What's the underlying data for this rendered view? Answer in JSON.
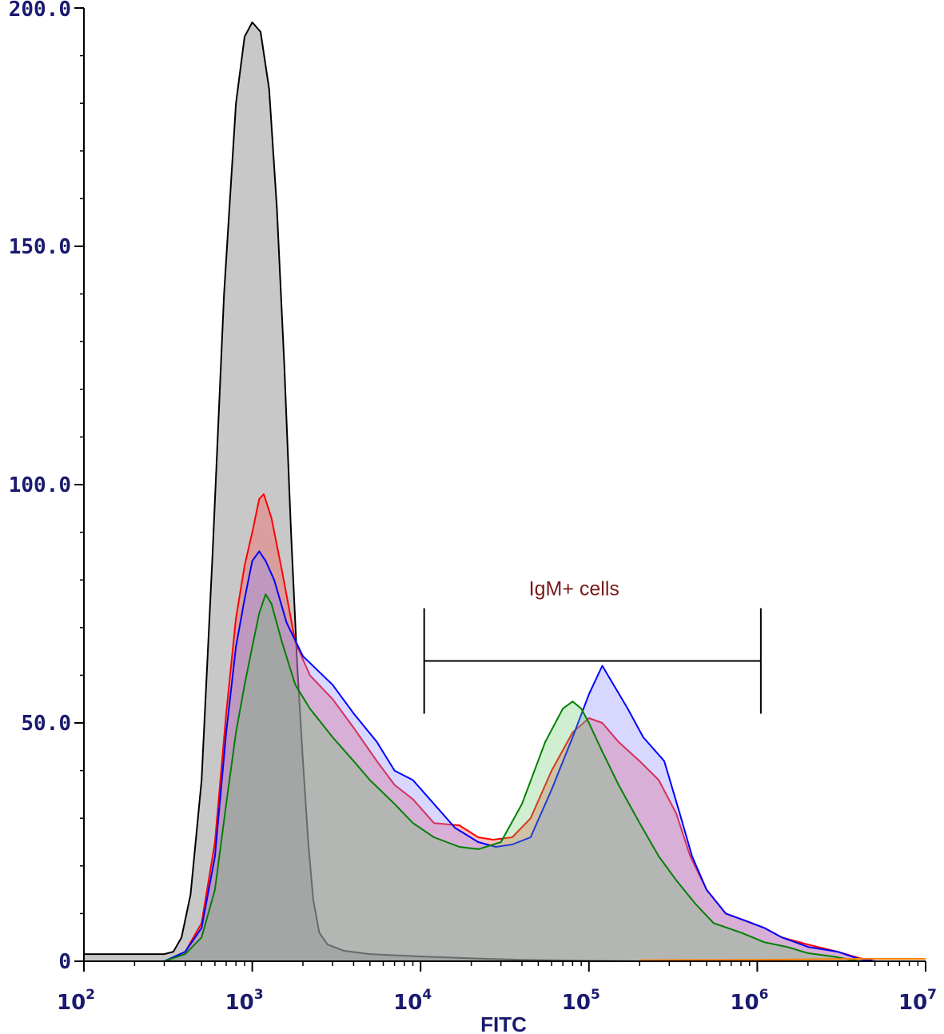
{
  "chart_data": {
    "type": "area",
    "title": "",
    "xlabel": "FITC",
    "ylabel": "",
    "xscale": "log",
    "xlim": [
      100,
      10000000
    ],
    "ylim": [
      0,
      200
    ],
    "grid": false,
    "yticks": [
      {
        "value": 0,
        "label": "0"
      },
      {
        "value": 50,
        "label": "50.0"
      },
      {
        "value": 100,
        "label": "100.0"
      },
      {
        "value": 150,
        "label": "150.0"
      },
      {
        "value": 200,
        "label": "200.0"
      }
    ],
    "xticks": [
      {
        "value": 100,
        "base": "10",
        "exp": "2"
      },
      {
        "value": 1000,
        "base": "10",
        "exp": "3"
      },
      {
        "value": 10000,
        "base": "10",
        "exp": "4"
      },
      {
        "value": 100000,
        "base": "10",
        "exp": "5"
      },
      {
        "value": 1000000,
        "base": "10",
        "exp": "6"
      },
      {
        "value": 10000000,
        "base": "10",
        "exp": "7"
      }
    ],
    "gate": {
      "label": "IgM+ cells",
      "x_start": 10500,
      "x_end": 1050000,
      "y": 63
    },
    "series": [
      {
        "color": "#000000",
        "fill": "#c8c8c8",
        "points": [
          [
            100,
            1.5
          ],
          [
            300,
            1.5
          ],
          [
            340,
            2
          ],
          [
            380,
            5
          ],
          [
            430,
            14
          ],
          [
            500,
            38
          ],
          [
            580,
            85
          ],
          [
            680,
            140
          ],
          [
            800,
            180
          ],
          [
            900,
            194
          ],
          [
            1000,
            197
          ],
          [
            1120,
            195
          ],
          [
            1260,
            183
          ],
          [
            1400,
            158
          ],
          [
            1550,
            125
          ],
          [
            1700,
            90
          ],
          [
            1850,
            62
          ],
          [
            2000,
            42
          ],
          [
            2150,
            25
          ],
          [
            2300,
            13
          ],
          [
            2500,
            6
          ],
          [
            2800,
            3.5
          ],
          [
            3500,
            2.2
          ],
          [
            5000,
            1.5
          ],
          [
            10000,
            1
          ],
          [
            20000,
            0.6
          ],
          [
            40000,
            0.3
          ],
          [
            100000,
            0.1
          ],
          [
            200000,
            0
          ]
        ]
      },
      {
        "color": "#ff0000",
        "fill": "#ff5050",
        "fill_opacity": 0.35,
        "points": [
          [
            300,
            0
          ],
          [
            400,
            2
          ],
          [
            500,
            8
          ],
          [
            600,
            25
          ],
          [
            700,
            52
          ],
          [
            800,
            72
          ],
          [
            900,
            83
          ],
          [
            1000,
            90
          ],
          [
            1100,
            97
          ],
          [
            1170,
            98
          ],
          [
            1300,
            93
          ],
          [
            1500,
            82
          ],
          [
            1800,
            67
          ],
          [
            2200,
            60
          ],
          [
            3000,
            55
          ],
          [
            4000,
            49
          ],
          [
            5500,
            42
          ],
          [
            7000,
            37
          ],
          [
            9000,
            34
          ],
          [
            12000,
            29
          ],
          [
            17000,
            28.5
          ],
          [
            22000,
            26
          ],
          [
            27000,
            25.5
          ],
          [
            35000,
            26
          ],
          [
            45000,
            30
          ],
          [
            60000,
            40
          ],
          [
            80000,
            48
          ],
          [
            100000,
            51
          ],
          [
            120000,
            50
          ],
          [
            150000,
            46
          ],
          [
            200000,
            42
          ],
          [
            260000,
            38
          ],
          [
            330000,
            31
          ],
          [
            400000,
            22
          ],
          [
            500000,
            15
          ],
          [
            650000,
            10
          ],
          [
            850000,
            8.5
          ],
          [
            1100000,
            7
          ],
          [
            1400000,
            5
          ],
          [
            2000000,
            3.5
          ],
          [
            3000000,
            2
          ],
          [
            4000000,
            0.7
          ],
          [
            5000000,
            0
          ]
        ]
      },
      {
        "color": "#0000ff",
        "fill": "#8c8cff",
        "fill_opacity": 0.35,
        "points": [
          [
            300,
            0
          ],
          [
            400,
            2
          ],
          [
            500,
            7
          ],
          [
            600,
            22
          ],
          [
            700,
            48
          ],
          [
            800,
            66
          ],
          [
            900,
            76
          ],
          [
            1000,
            84
          ],
          [
            1100,
            86
          ],
          [
            1200,
            84
          ],
          [
            1350,
            80
          ],
          [
            1600,
            71
          ],
          [
            2000,
            64
          ],
          [
            3000,
            58
          ],
          [
            4000,
            52
          ],
          [
            5500,
            46
          ],
          [
            7000,
            40
          ],
          [
            9000,
            38
          ],
          [
            12000,
            33
          ],
          [
            16000,
            28
          ],
          [
            22000,
            25
          ],
          [
            28000,
            24
          ],
          [
            35000,
            24.5
          ],
          [
            45000,
            26
          ],
          [
            60000,
            36
          ],
          [
            80000,
            47
          ],
          [
            100000,
            56
          ],
          [
            120000,
            62
          ],
          [
            140000,
            58
          ],
          [
            170000,
            53
          ],
          [
            210000,
            47
          ],
          [
            280000,
            42
          ],
          [
            340000,
            32
          ],
          [
            410000,
            22
          ],
          [
            500000,
            15
          ],
          [
            650000,
            10
          ],
          [
            850000,
            8.5
          ],
          [
            1100000,
            7
          ],
          [
            1400000,
            5
          ],
          [
            2000000,
            3
          ],
          [
            3000000,
            2
          ],
          [
            4000000,
            0.5
          ],
          [
            5000000,
            0
          ]
        ]
      },
      {
        "color": "#008000",
        "fill": "#64c864",
        "fill_opacity": 0.3,
        "points": [
          [
            300,
            0
          ],
          [
            400,
            1.5
          ],
          [
            500,
            5
          ],
          [
            600,
            15
          ],
          [
            700,
            33
          ],
          [
            800,
            48
          ],
          [
            900,
            58
          ],
          [
            1000,
            66
          ],
          [
            1100,
            73
          ],
          [
            1200,
            77
          ],
          [
            1300,
            75
          ],
          [
            1500,
            67
          ],
          [
            1800,
            58
          ],
          [
            2200,
            53
          ],
          [
            3000,
            47
          ],
          [
            4000,
            42
          ],
          [
            5000,
            38
          ],
          [
            7000,
            33
          ],
          [
            9000,
            29
          ],
          [
            12000,
            26
          ],
          [
            17000,
            24
          ],
          [
            22000,
            23.5
          ],
          [
            30000,
            25
          ],
          [
            40000,
            33
          ],
          [
            55000,
            46
          ],
          [
            70000,
            53
          ],
          [
            80000,
            54.5
          ],
          [
            90000,
            53
          ],
          [
            100000,
            50
          ],
          [
            120000,
            44
          ],
          [
            150000,
            37
          ],
          [
            200000,
            29
          ],
          [
            260000,
            22
          ],
          [
            330000,
            17
          ],
          [
            430000,
            12
          ],
          [
            550000,
            8
          ],
          [
            800000,
            6
          ],
          [
            1100000,
            4
          ],
          [
            1500000,
            3
          ],
          [
            2000000,
            1.7
          ],
          [
            2800000,
            1
          ],
          [
            4000000,
            0
          ]
        ]
      },
      {
        "color": "#ff8000",
        "fill": "none",
        "points": [
          [
            200000,
            0.2
          ],
          [
            1000000,
            0.3
          ],
          [
            4000000,
            0.5
          ],
          [
            10000000,
            0.5
          ]
        ]
      }
    ]
  }
}
